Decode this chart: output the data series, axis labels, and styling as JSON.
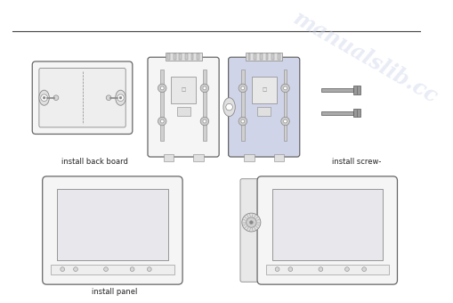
{
  "background_color": "#ffffff",
  "watermark_text": "manualslib.cc",
  "watermark_color": "#c8d0e8",
  "watermark_alpha": 0.4,
  "label1": "install back board",
  "label2": "install screw-",
  "label3": "install panel",
  "line_color": "#666666",
  "draw_color": "#888888",
  "fill_color": "#f5f5f5",
  "blue_fill": "#d0d4e8"
}
